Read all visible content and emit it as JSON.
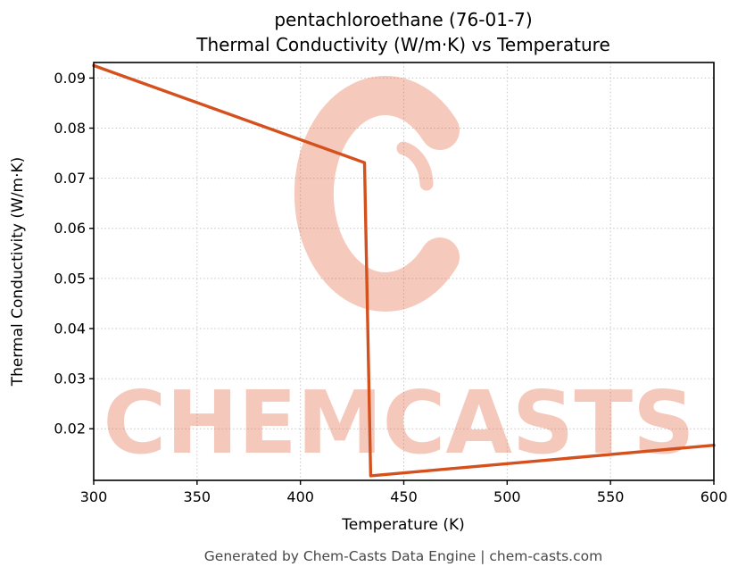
{
  "chart_data": {
    "type": "line",
    "title_line1": "pentachloroethane (76-01-7)",
    "title_line2": "Thermal Conductivity (W/m·K) vs Temperature",
    "xlabel": "Temperature (K)",
    "ylabel": "Thermal Conductivity (W/m·K)",
    "xlim": [
      300,
      600
    ],
    "ylim": [
      0.0097,
      0.0931
    ],
    "xticks": [
      300,
      350,
      400,
      450,
      500,
      550,
      600
    ],
    "yticks": [
      0.02,
      0.03,
      0.04,
      0.05,
      0.06,
      0.07,
      0.08,
      0.09
    ],
    "grid": true,
    "legend": false,
    "line_color": "#d4511e",
    "series": [
      {
        "name": "thermal_conductivity",
        "x": [
          300,
          431,
          434,
          600
        ],
        "y": [
          0.0925,
          0.0731,
          0.0106,
          0.0167
        ]
      }
    ],
    "watermark": {
      "text": "CHEMCASTS",
      "color": "#e05a33",
      "opacity": 0.32
    }
  },
  "footer": {
    "text": "Generated by Chem-Casts Data Engine | chem-casts.com"
  }
}
